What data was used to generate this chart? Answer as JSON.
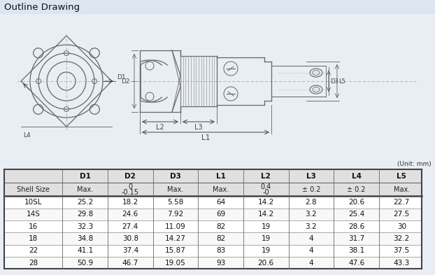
{
  "title": "Outline Drawing",
  "unit_note": "(Unit: mm)",
  "header_row1": [
    "",
    "D1",
    "D2",
    "D3",
    "L1",
    "L2",
    "L3",
    "L4",
    "L5"
  ],
  "header_row2": [
    "Shell Size",
    "Max.",
    "0\n-0.15",
    "Max.",
    "Max.",
    "0.4\n-0",
    "± 0.2",
    "± 0.2",
    "Max."
  ],
  "table_data": [
    [
      "10SL",
      "25.2",
      "18.2",
      "5.58",
      "64",
      "14.2",
      "2.8",
      "20.6",
      "22.7"
    ],
    [
      "14S",
      "29.8",
      "24.6",
      "7.92",
      "69",
      "14.2",
      "3.2",
      "25.4",
      "27.5"
    ],
    [
      "16",
      "32.3",
      "27.4",
      "11.09",
      "82",
      "19",
      "3.2",
      "28.6",
      "30"
    ],
    [
      "18",
      "34.8",
      "30.8",
      "14.27",
      "82",
      "19",
      "4",
      "31.7",
      "32.2"
    ],
    [
      "22",
      "41.1",
      "37.4",
      "15.87",
      "83",
      "19",
      "4",
      "38.1",
      "37.5"
    ],
    [
      "28",
      "50.9",
      "46.7",
      "19.05",
      "93",
      "20.6",
      "4",
      "47.6",
      "43.3"
    ]
  ],
  "bg_color": "#e8eef4",
  "header_bg": "#e0e0e0",
  "border_color": "#444444",
  "title_color": "#111111",
  "drawing_bg": "#f5f8fa",
  "line_color": "#666666",
  "dim_color": "#444444",
  "table_row_alt": "#f0f0f0",
  "table_row_normal": "#ffffff",
  "table_bg": "#ffffff"
}
